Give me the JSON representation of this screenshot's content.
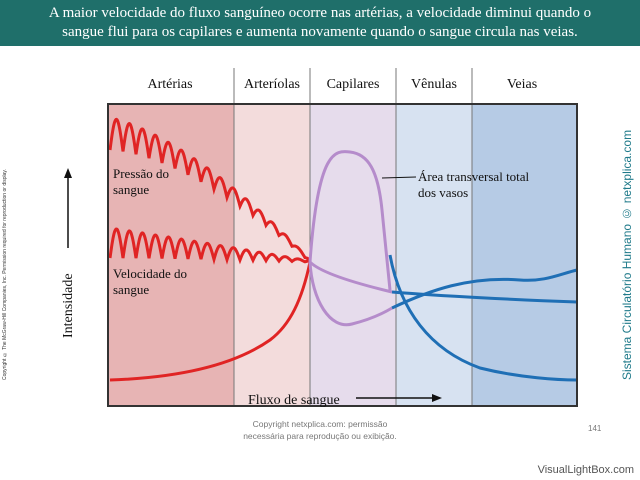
{
  "banner": {
    "line1": "A maior velocidade do fluxo sanguíneo ocorre nas artérias, a velocidade diminui quando o",
    "line2": "sangue flui para os capilares e aumenta novamente quando o sangue circula nas veias."
  },
  "regions": {
    "arterias": "Artérias",
    "arteriolas": "Arteríolas",
    "capilares": "Capilares",
    "venulas": "Vênulas",
    "veias": "Veias"
  },
  "labels": {
    "pressao_line1": "Pressão do",
    "pressao_line2": "sangue",
    "velocidade_line1": "Velocidade do",
    "velocidade_line2": "sangue",
    "area_line1": "Área transversal total",
    "area_line2": "dos vasos",
    "y_axis": "Intensidade",
    "x_axis": "Fluxo de sangue"
  },
  "side_copyright": "Copyright © The McGraw-Hill Companies, Inc. Permission required for reproduction or display.",
  "side_title": "Sistema Circulatório Humano © netxplica.com",
  "footer": {
    "line1": "Copyright netxplica.com: permissão",
    "line2": "necessária para reprodução ou exibição."
  },
  "page_number": "141",
  "watermark": "VisualLightBox.com",
  "colors": {
    "banner": "#1f6f6a",
    "arterias": "#e7b4b4",
    "arteriolas": "#f3dcdc",
    "capilares": "#e6dcec",
    "venulas": "#d7e2f1",
    "veias": "#b6cbe5",
    "red": "#e02424",
    "purple": "#b58ccb",
    "blue": "#1f6fb5"
  }
}
